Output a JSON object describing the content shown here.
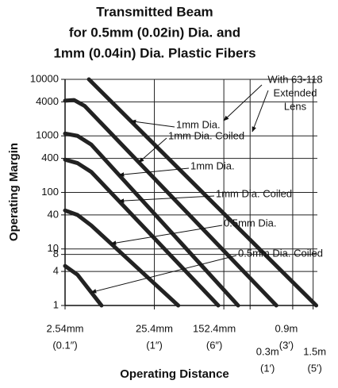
{
  "chart_data": {
    "type": "line",
    "title": [
      "Transmitted Beam",
      "for 0.5mm (0.02in) Dia. and",
      "1mm (0.04in) Dia. Plastic Fibers"
    ],
    "x_label": "Operating Distance",
    "y_label": "Operating Margin",
    "x_log": true,
    "y_log": true,
    "grid": true,
    "xlim": [
      2.54,
      1700
    ],
    "ylim": [
      1,
      10000
    ],
    "xticks": [
      {
        "value": 2.54,
        "label": "2.54mm"
      },
      {
        "value": 25.4,
        "label": "25.4mm"
      },
      {
        "value": 152.4,
        "label": "152.4mm"
      },
      {
        "value": 300,
        "label": "0.3m"
      },
      {
        "value": 900,
        "label": "0.9m"
      },
      {
        "value": 1524,
        "label": "1.5m"
      }
    ],
    "xtick_sublabels": [
      "(0.1″)",
      "(1″)",
      "(6″)",
      "(1′)",
      "(3′)",
      "(5′)"
    ],
    "yticks": [
      1,
      4,
      8,
      10,
      40,
      100,
      400,
      1000,
      4000,
      10000
    ],
    "annotation": [
      "With 63-118",
      "Extended",
      "Lens"
    ],
    "series": [
      {
        "name": "1mm Dia.",
        "color": "#222",
        "x": [
          4.7,
          1650
        ],
        "values": [
          10000,
          1
        ]
      },
      {
        "name": "1mm Dia. Coiled",
        "color": "#222",
        "x": [
          2.54,
          3.2,
          4.2,
          590
        ],
        "values": [
          4200,
          4300,
          3400,
          1
        ]
      },
      {
        "name": "1mm Dia.",
        "color": "#222",
        "x": [
          2.54,
          3.5,
          5,
          220
        ],
        "values": [
          1100,
          1000,
          700,
          1
        ]
      },
      {
        "name": "1mm Dia. Coiled",
        "color": "#222",
        "x": [
          2.54,
          3.5,
          5,
          132
        ],
        "values": [
          380,
          330,
          230,
          1
        ]
      },
      {
        "name": "0.5mm Dia.",
        "color": "#222",
        "x": [
          2.54,
          3.5,
          5,
          47
        ],
        "values": [
          48,
          40,
          26,
          1
        ]
      },
      {
        "name": "0.5mm Dia. Coiled",
        "color": "#222",
        "x": [
          2.54,
          3.5,
          6.5
        ],
        "values": [
          5,
          3.5,
          1
        ]
      }
    ]
  }
}
